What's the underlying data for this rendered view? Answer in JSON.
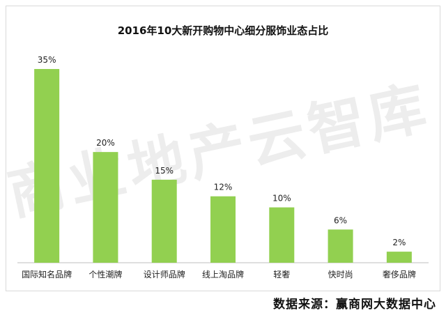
{
  "chart_data": {
    "type": "bar",
    "title": "2016年10大新开购物中心细分服饰业态占比",
    "categories": [
      "国际知名品牌",
      "个性潮牌",
      "设计师品牌",
      "线上淘品牌",
      "轻奢",
      "快时尚",
      "奢侈品牌"
    ],
    "values": [
      35,
      20,
      15,
      12,
      10,
      6,
      2
    ],
    "value_labels": [
      "35%",
      "20%",
      "15%",
      "12%",
      "10%",
      "6%",
      "2%"
    ],
    "xlabel": "",
    "ylabel": "",
    "ylim": [
      0,
      35
    ],
    "grid": false,
    "legend": "none",
    "bar_color": "#92d050"
  },
  "watermark": "商业地产云智库",
  "source_note": "数据来源：赢商网大数据中心"
}
